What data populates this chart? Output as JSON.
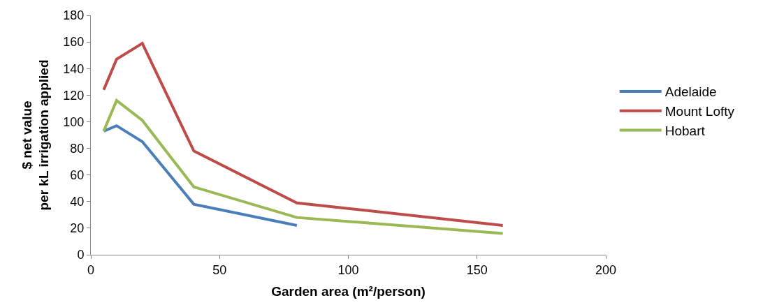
{
  "chart_data": {
    "type": "line",
    "xlabel": "Garden area (m²/person)",
    "ylabel": "$ net value\nper kL irrigation applied",
    "xlim": [
      0,
      200
    ],
    "xticks": [
      0,
      50,
      100,
      150,
      200
    ],
    "ylim": [
      0,
      180
    ],
    "yticks": [
      0,
      20,
      40,
      60,
      80,
      100,
      120,
      140,
      160,
      180
    ],
    "grid": false,
    "legend": "right",
    "marker": "none",
    "line_style": "solid",
    "series": [
      {
        "name": "Adelaide",
        "color": "#4a7ebb",
        "x": [
          5,
          10,
          20,
          40,
          80
        ],
        "values": [
          93,
          97,
          85,
          38,
          22
        ]
      },
      {
        "name": "Mount Lofty",
        "color": "#be4b48",
        "x": [
          5,
          10,
          20,
          40,
          80,
          160
        ],
        "values": [
          124,
          147,
          159,
          78,
          39,
          22
        ]
      },
      {
        "name": "Hobart",
        "color": "#98b954",
        "x": [
          5,
          10,
          20,
          40,
          80,
          160
        ],
        "values": [
          93,
          116,
          101,
          51,
          28,
          16
        ]
      }
    ]
  }
}
